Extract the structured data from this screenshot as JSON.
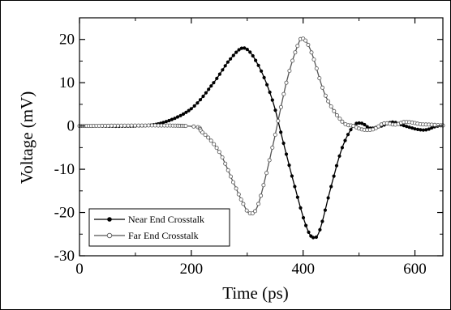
{
  "chart_data": {
    "type": "line",
    "xlabel": "Time (ps)",
    "ylabel": "Voltage (mV)",
    "xlim": [
      0,
      650
    ],
    "ylim": [
      -30,
      25
    ],
    "x_ticks": [
      0,
      200,
      400,
      600
    ],
    "y_ticks": [
      -30,
      -20,
      -10,
      0,
      10,
      20
    ],
    "grid": false,
    "legend_position": "bottom-left",
    "series": [
      {
        "name": "Near End Crosstalk",
        "marker": "filled-circle",
        "color": "#000000",
        "x": [
          0,
          100,
          150,
          200,
          240,
          270,
          295,
          320,
          345,
          365,
          385,
          405,
          418,
          430,
          450,
          470,
          490,
          505,
          520,
          540,
          560,
          575,
          590,
          605,
          620,
          635,
          650
        ],
        "values": [
          0,
          0,
          0.8,
          4,
          10,
          15.5,
          18,
          14,
          6,
          -4,
          -14,
          -23,
          -25.8,
          -24,
          -14,
          -5,
          0,
          0.6,
          -0.5,
          0,
          0.9,
          0.3,
          -0.3,
          -0.8,
          -0.9,
          -0.2,
          0.2
        ]
      },
      {
        "name": "Far End Crosstalk",
        "marker": "open-circle",
        "color": "#555555",
        "x": [
          0,
          190,
          220,
          250,
          275,
          293,
          305,
          320,
          345,
          370,
          390,
          400,
          415,
          440,
          470,
          490,
          505,
          525,
          545,
          565,
          580,
          595,
          610,
          630,
          650
        ],
        "values": [
          0,
          0,
          -1.5,
          -6,
          -13,
          -18,
          -20.2,
          -18,
          -5,
          10,
          18.5,
          20.2,
          17,
          7,
          1,
          0,
          -0.8,
          -0.8,
          0.6,
          0.3,
          0.9,
          0.8,
          0.4,
          0.3,
          0.1
        ]
      }
    ]
  }
}
